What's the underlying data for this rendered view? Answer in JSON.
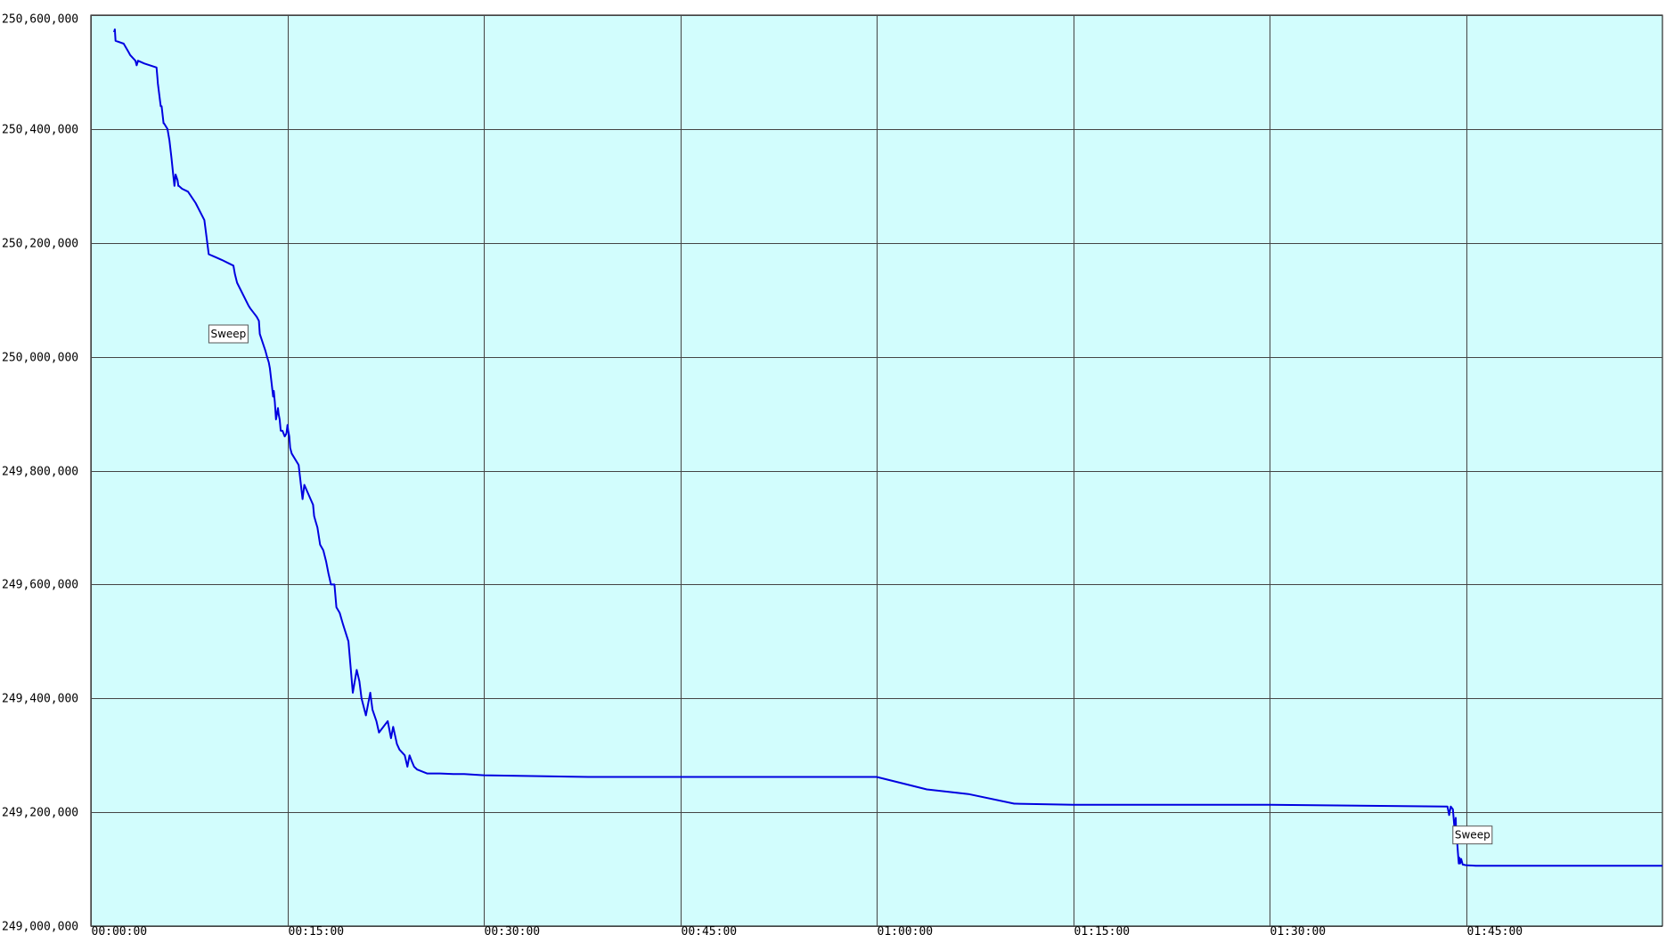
{
  "chart_data": {
    "type": "line",
    "title": "",
    "xlabel": "",
    "ylabel": "",
    "grid": true,
    "background_color": "#d2fdfd",
    "line_color": "#0000e0",
    "ylim": [
      249000000,
      250600000
    ],
    "xlim_seconds": [
      0,
      7200
    ],
    "y_ticks": [
      249000000,
      249200000,
      249400000,
      249600000,
      249800000,
      250000000,
      250200000,
      250400000,
      250600000
    ],
    "y_tick_labels": [
      "249,000,000",
      "249,200,000",
      "249,400,000",
      "249,600,000",
      "249,800,000",
      "250,000,000",
      "250,200,000",
      "250,400,000",
      "250,600,000"
    ],
    "x_ticks": [
      "00:00:00",
      "00:15:00",
      "00:30:00",
      "00:45:00",
      "01:00:00",
      "01:15:00",
      "01:30:00",
      "01:45:00"
    ],
    "annotations": [
      {
        "text": "Sweep",
        "time": "00:10:30",
        "value": 250040000
      },
      {
        "text": "Sweep",
        "time": "01:45:30",
        "value": 249160000
      }
    ],
    "series": [
      {
        "times": [
          "00:01:46",
          "00:01:50",
          "00:01:53",
          "00:02:30",
          "00:02:53",
          "00:03:00",
          "00:03:24",
          "00:03:30",
          "00:03:36",
          "00:04:05",
          "00:05:01",
          "00:05:05",
          "00:05:07",
          "00:05:20",
          "00:05:24",
          "00:05:33",
          "00:05:35",
          "00:05:51",
          "00:06:00",
          "00:06:09",
          "00:06:17",
          "00:06:23",
          "00:06:28",
          "00:06:37",
          "00:06:41",
          "00:06:43",
          "00:06:58",
          "00:07:25",
          "00:08:00",
          "00:08:40",
          "00:09:00",
          "00:09:30",
          "00:10:00",
          "00:10:53",
          "00:11:00",
          "00:11:10",
          "00:12:02",
          "00:12:10",
          "00:12:30",
          "00:12:40",
          "00:12:50",
          "00:12:54",
          "00:13:20",
          "00:13:27",
          "00:13:35",
          "00:13:40",
          "00:13:55",
          "00:13:58",
          "00:14:03",
          "00:14:08",
          "00:14:17",
          "00:14:20",
          "00:14:25",
          "00:14:30",
          "00:14:38",
          "00:14:48",
          "00:14:56",
          "00:15:01",
          "00:15:04",
          "00:15:09",
          "00:15:13",
          "00:15:20",
          "00:15:52",
          "00:16:10",
          "00:16:18",
          "00:16:35",
          "00:16:58",
          "00:17:03",
          "00:17:10",
          "00:17:18",
          "00:17:30",
          "00:17:45",
          "00:17:58",
          "00:18:08",
          "00:18:20",
          "00:18:36",
          "00:18:45",
          "00:19:00",
          "00:19:15",
          "00:19:40",
          "00:20:00",
          "00:20:18",
          "00:20:30",
          "00:20:40",
          "00:21:00",
          "00:21:20",
          "00:21:30",
          "00:21:48",
          "00:22:00",
          "00:22:40",
          "00:22:55",
          "00:23:05",
          "00:23:22",
          "00:23:34",
          "00:23:58",
          "00:24:10",
          "00:24:20",
          "00:24:30",
          "00:24:41",
          "00:24:55",
          "00:25:40",
          "00:26:00",
          "00:26:10",
          "00:26:40",
          "00:27:45",
          "00:28:30",
          "00:30:00",
          "00:38:00",
          "00:42:00",
          "00:43:00",
          "00:45:00",
          "00:57:00",
          "00:59:00",
          "01:00:00",
          "01:03:50",
          "01:07:00",
          "01:10:30",
          "01:10:35",
          "01:15:00",
          "01:30:00",
          "01:43:35",
          "01:43:43",
          "01:43:50",
          "01:44:00",
          "01:44:08",
          "01:44:10",
          "01:44:13",
          "01:44:15",
          "01:44:19",
          "01:44:23",
          "01:44:27",
          "01:44:30",
          "01:44:33",
          "01:44:38",
          "01:44:45",
          "01:45:00",
          "01:45:45",
          "01:45:55",
          "02:00:00"
        ],
        "values": [
          250570000,
          250575000,
          250555000,
          250550000,
          250535000,
          250530000,
          250520000,
          250512000,
          250520000,
          250515000,
          250508000,
          250490000,
          250480000,
          250440000,
          250440000,
          250410000,
          250410000,
          250400000,
          250380000,
          250350000,
          250320000,
          250300000,
          250320000,
          250310000,
          250300000,
          250300000,
          250295000,
          250290000,
          250270000,
          250240000,
          250180000,
          250175000,
          250170000,
          250160000,
          250145000,
          250130000,
          250090000,
          250085000,
          250075000,
          250070000,
          250063000,
          250040000,
          250010000,
          250000000,
          249990000,
          249980000,
          249930000,
          249940000,
          249920000,
          249890000,
          249910000,
          249900000,
          249890000,
          249870000,
          249870000,
          249860000,
          249865000,
          249880000,
          249870000,
          249860000,
          249840000,
          249830000,
          249810000,
          249750000,
          249775000,
          249760000,
          249740000,
          249720000,
          249710000,
          249700000,
          249670000,
          249660000,
          249640000,
          249620000,
          249600000,
          249600000,
          249560000,
          249550000,
          249530000,
          249500000,
          249410000,
          249450000,
          249430000,
          249400000,
          249370000,
          249410000,
          249380000,
          249360000,
          249340000,
          249360000,
          249330000,
          249350000,
          249320000,
          249310000,
          249300000,
          249280000,
          249300000,
          249290000,
          249280000,
          249275000,
          249268000,
          249268000,
          249268000,
          249268000,
          249267000,
          249267000,
          249265000,
          249262000,
          249262000,
          249262000,
          249262000,
          249262000,
          249262000,
          249262000,
          249240000,
          249232000,
          249215000,
          249215000,
          249213000,
          249213000,
          249210000,
          249195000,
          249210000,
          249205000,
          249168000,
          249180000,
          249190000,
          249160000,
          249150000,
          249130000,
          249110000,
          249120000,
          249110000,
          249118000,
          249108000,
          249107000,
          249106000,
          249106000,
          249106000
        ]
      }
    ]
  }
}
